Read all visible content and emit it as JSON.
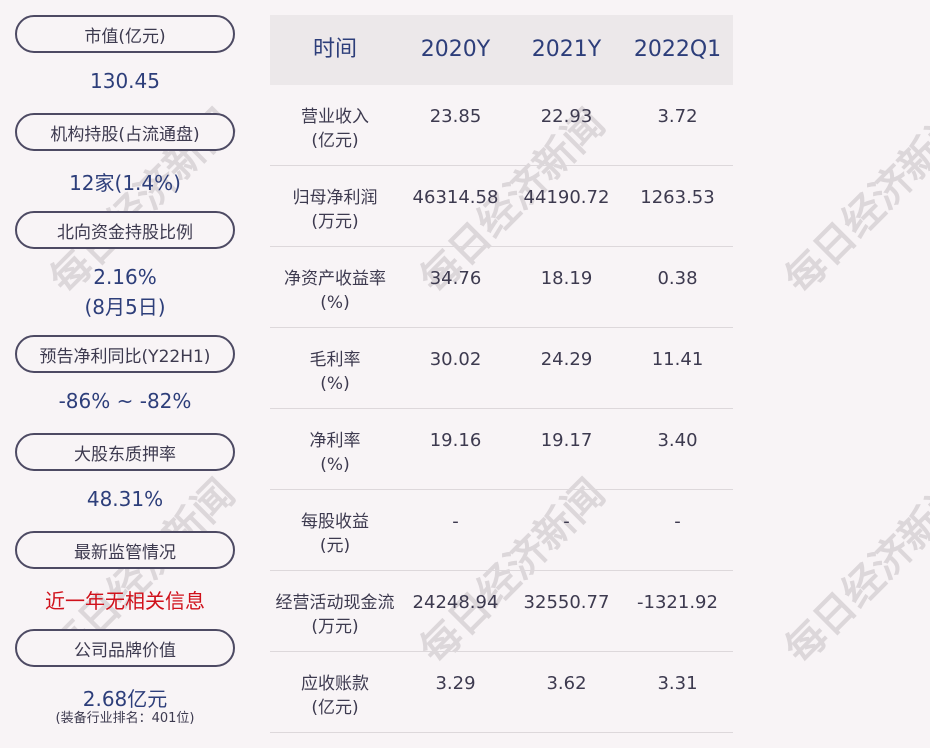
{
  "left": {
    "market_cap": {
      "label": "市值(亿元)",
      "value": "130.45"
    },
    "institution": {
      "label": "机构持股(占流通盘)",
      "value": "12家(1.4%)"
    },
    "northbound": {
      "label": "北向资金持股比例",
      "value": "2.16%",
      "value2": "(8月5日)"
    },
    "forecast": {
      "label": "预告净利同比(Y22H1)",
      "value": "-86% ~ -82%"
    },
    "pledge": {
      "label": "大股东质押率",
      "value": "48.31%"
    },
    "regulation": {
      "label": "最新监管情况",
      "value": "近一年无相关信息"
    },
    "brand": {
      "label": "公司品牌价值",
      "value": "2.68亿元",
      "note": "(装备行业排名：401位)"
    }
  },
  "table": {
    "headers": [
      "时间",
      "2020Y",
      "2021Y",
      "2022Q1"
    ],
    "rows": [
      {
        "name": "营业收入",
        "unit": "(亿元)",
        "values": [
          "23.85",
          "22.93",
          "3.72"
        ]
      },
      {
        "name": "归母净利润",
        "unit": "(万元)",
        "values": [
          "46314.58",
          "44190.72",
          "1263.53"
        ]
      },
      {
        "name": "净资产收益率",
        "unit": "(%)",
        "values": [
          "34.76",
          "18.19",
          "0.38"
        ]
      },
      {
        "name": "毛利率",
        "unit": "(%)",
        "values": [
          "30.02",
          "24.29",
          "11.41"
        ]
      },
      {
        "name": "净利率",
        "unit": "(%)",
        "values": [
          "19.16",
          "19.17",
          "3.40"
        ]
      },
      {
        "name": "每股收益",
        "unit": "(元)",
        "values": [
          "-",
          "-",
          "-"
        ]
      },
      {
        "name": "经营活动现金流",
        "unit": "(万元)",
        "values": [
          "24248.94",
          "32550.77",
          "-1321.92"
        ]
      },
      {
        "name": "应收账款",
        "unit": "(亿元)",
        "values": [
          "3.29",
          "3.62",
          "3.31"
        ]
      }
    ]
  },
  "watermark": "每日经济新闻"
}
